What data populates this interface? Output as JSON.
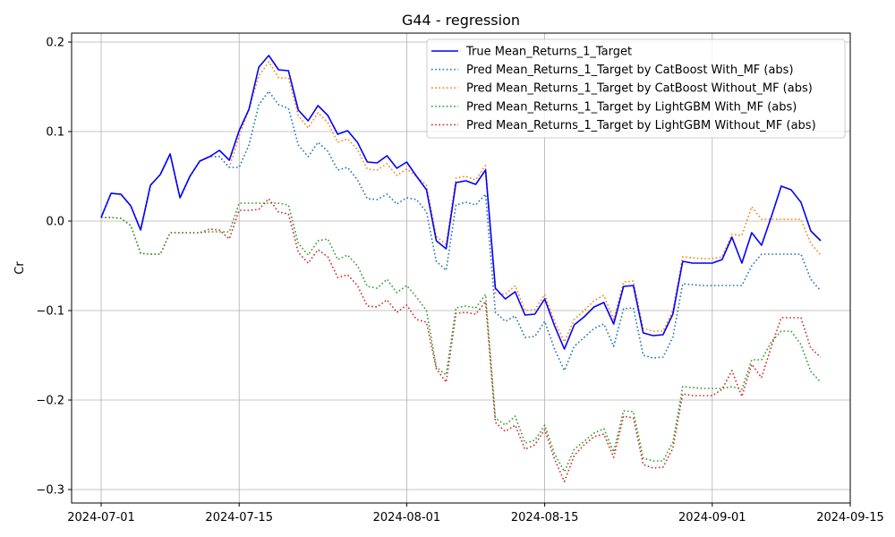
{
  "chart_data": {
    "type": "line",
    "title": "G44 - regression",
    "xlabel": "",
    "ylabel": "Cr",
    "x_type": "date",
    "xlim": [
      "2024-06-28",
      "2024-09-15"
    ],
    "ylim": [
      -0.315,
      0.21
    ],
    "x_ticks": [
      "2024-07-01",
      "2024-07-15",
      "2024-08-01",
      "2024-08-15",
      "2024-09-01",
      "2024-09-15"
    ],
    "y_ticks": [
      0.2,
      0.1,
      0.0,
      -0.1,
      -0.2,
      -0.3
    ],
    "y_tick_labels": [
      "0.2",
      "0.1",
      "0.0",
      "−0.1",
      "−0.2",
      "−0.3"
    ],
    "grid": true,
    "legend_position": "top-right",
    "start_date": "2024-07-01",
    "series": [
      {
        "name": "True Mean_Returns_1_Target",
        "color": "#0000ff",
        "style": "solid",
        "values": [
          0.004,
          0.031,
          0.03,
          0.017,
          -0.01,
          0.04,
          0.052,
          0.075,
          0.026,
          0.05,
          0.067,
          0.072,
          0.079,
          0.068,
          0.101,
          0.125,
          0.172,
          0.185,
          0.169,
          0.168,
          0.124,
          0.112,
          0.129,
          0.118,
          0.097,
          0.101,
          0.088,
          0.066,
          0.065,
          0.073,
          0.059,
          0.066,
          0.05,
          0.035,
          -0.022,
          -0.031,
          0.043,
          0.045,
          0.041,
          0.057,
          -0.075,
          -0.087,
          -0.079,
          -0.105,
          -0.104,
          -0.087,
          -0.117,
          -0.143,
          -0.116,
          -0.107,
          -0.096,
          -0.091,
          -0.115,
          -0.073,
          -0.072,
          -0.125,
          -0.128,
          -0.127,
          -0.104,
          -0.045,
          -0.047,
          -0.047,
          -0.047,
          -0.043,
          -0.018,
          -0.047,
          -0.013,
          -0.027,
          0.005,
          0.039,
          0.035,
          0.021,
          -0.011,
          -0.022
        ]
      },
      {
        "name": "Pred Mean_Returns_1_Target by CatBoost With_MF (abs)",
        "color": "#1f77b4",
        "style": "dotted",
        "values": [
          0.004,
          0.031,
          0.03,
          0.017,
          -0.01,
          0.04,
          0.052,
          0.075,
          0.026,
          0.05,
          0.067,
          0.072,
          0.072,
          0.06,
          0.06,
          0.085,
          0.13,
          0.145,
          0.13,
          0.126,
          0.085,
          0.072,
          0.088,
          0.078,
          0.057,
          0.06,
          0.046,
          0.025,
          0.024,
          0.03,
          0.019,
          0.026,
          0.024,
          0.01,
          -0.045,
          -0.055,
          0.018,
          0.021,
          0.018,
          0.03,
          -0.102,
          -0.112,
          -0.106,
          -0.13,
          -0.129,
          -0.112,
          -0.143,
          -0.167,
          -0.14,
          -0.13,
          -0.12,
          -0.115,
          -0.14,
          -0.098,
          -0.097,
          -0.15,
          -0.153,
          -0.152,
          -0.13,
          -0.07,
          -0.071,
          -0.072,
          -0.072,
          -0.072,
          -0.072,
          -0.072,
          -0.05,
          -0.037,
          -0.037,
          -0.037,
          -0.037,
          -0.037,
          -0.065,
          -0.078
        ]
      },
      {
        "name": "Pred Mean_Returns_1_Target by CatBoost Without_MF (abs)",
        "color": "#ff7f0e",
        "style": "dotted",
        "values": [
          0.004,
          0.031,
          0.03,
          0.017,
          -0.01,
          0.04,
          0.052,
          0.075,
          0.026,
          0.05,
          0.067,
          0.072,
          0.072,
          0.06,
          0.095,
          0.125,
          0.162,
          0.178,
          0.16,
          0.16,
          0.118,
          0.104,
          0.121,
          0.11,
          0.088,
          0.092,
          0.08,
          0.058,
          0.057,
          0.064,
          0.051,
          0.058,
          0.05,
          0.04,
          -0.017,
          -0.026,
          0.048,
          0.05,
          0.046,
          0.062,
          -0.08,
          -0.082,
          -0.072,
          -0.1,
          -0.099,
          -0.082,
          -0.112,
          -0.135,
          -0.11,
          -0.1,
          -0.089,
          -0.083,
          -0.11,
          -0.068,
          -0.067,
          -0.12,
          -0.123,
          -0.123,
          -0.1,
          -0.04,
          -0.041,
          -0.042,
          -0.042,
          -0.04,
          -0.015,
          -0.016,
          0.016,
          0.002,
          0.002,
          0.002,
          0.002,
          0.002,
          -0.025,
          -0.038
        ]
      },
      {
        "name": "Pred Mean_Returns_1_Target by LightGBM With_MF (abs)",
        "color": "#2ca02c",
        "style": "dotted",
        "values": [
          0.004,
          0.004,
          0.003,
          -0.005,
          -0.036,
          -0.037,
          -0.037,
          -0.013,
          -0.013,
          -0.013,
          -0.013,
          -0.012,
          -0.012,
          -0.012,
          0.02,
          0.02,
          0.02,
          0.02,
          0.02,
          0.018,
          -0.025,
          -0.038,
          -0.022,
          -0.02,
          -0.043,
          -0.038,
          -0.05,
          -0.073,
          -0.075,
          -0.065,
          -0.08,
          -0.072,
          -0.085,
          -0.1,
          -0.163,
          -0.172,
          -0.097,
          -0.095,
          -0.097,
          -0.082,
          -0.22,
          -0.228,
          -0.218,
          -0.248,
          -0.245,
          -0.228,
          -0.26,
          -0.28,
          -0.255,
          -0.246,
          -0.237,
          -0.232,
          -0.258,
          -0.212,
          -0.213,
          -0.265,
          -0.268,
          -0.268,
          -0.247,
          -0.185,
          -0.186,
          -0.187,
          -0.187,
          -0.187,
          -0.185,
          -0.188,
          -0.155,
          -0.155,
          -0.135,
          -0.123,
          -0.123,
          -0.138,
          -0.168,
          -0.18
        ]
      },
      {
        "name": "Pred Mean_Returns_1_Target by LightGBM Without_MF (abs)",
        "color": "#d62728",
        "style": "dotted",
        "values": [
          0.004,
          0.004,
          0.003,
          -0.005,
          -0.036,
          -0.037,
          -0.037,
          -0.013,
          -0.013,
          -0.013,
          -0.013,
          -0.009,
          -0.01,
          -0.02,
          0.012,
          0.012,
          0.013,
          0.025,
          0.01,
          0.008,
          -0.035,
          -0.047,
          -0.032,
          -0.04,
          -0.063,
          -0.06,
          -0.072,
          -0.095,
          -0.096,
          -0.088,
          -0.102,
          -0.094,
          -0.11,
          -0.113,
          -0.165,
          -0.18,
          -0.103,
          -0.102,
          -0.104,
          -0.09,
          -0.225,
          -0.235,
          -0.228,
          -0.255,
          -0.25,
          -0.233,
          -0.266,
          -0.291,
          -0.262,
          -0.25,
          -0.241,
          -0.238,
          -0.264,
          -0.218,
          -0.22,
          -0.272,
          -0.276,
          -0.275,
          -0.254,
          -0.193,
          -0.195,
          -0.195,
          -0.195,
          -0.188,
          -0.167,
          -0.196,
          -0.16,
          -0.175,
          -0.14,
          -0.108,
          -0.108,
          -0.108,
          -0.142,
          -0.152
        ]
      }
    ]
  }
}
